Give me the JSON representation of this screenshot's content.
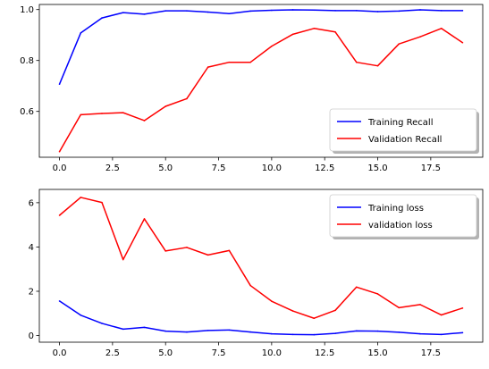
{
  "chart_data": [
    {
      "type": "line",
      "x": [
        0,
        1,
        2,
        3,
        4,
        5,
        6,
        7,
        8,
        9,
        10,
        11,
        12,
        13,
        14,
        15,
        16,
        17,
        18,
        19
      ],
      "xlim": [
        -0.95,
        19.95
      ],
      "ylim": [
        0.42,
        1.02
      ],
      "xticks": [
        0.0,
        2.5,
        5.0,
        7.5,
        10.0,
        12.5,
        15.0,
        17.5
      ],
      "xtick_labels": [
        "0.0",
        "2.5",
        "5.0",
        "7.5",
        "10.0",
        "12.5",
        "15.0",
        "17.5"
      ],
      "yticks": [
        0.6,
        0.8,
        1.0
      ],
      "ytick_labels": [
        "0.6",
        "0.8",
        "1.0"
      ],
      "grid": false,
      "legend_position": "lower-right",
      "series": [
        {
          "name": "Training Recall",
          "color": "#0000ff",
          "values": [
            0.707,
            0.908,
            0.967,
            0.988,
            0.982,
            0.995,
            0.995,
            0.99,
            0.984,
            0.994,
            0.997,
            0.999,
            0.998,
            0.996,
            0.996,
            0.992,
            0.994,
            0.999,
            0.996,
            0.996
          ]
        },
        {
          "name": "Validation Recall",
          "color": "#ff0000",
          "values": [
            0.442,
            0.587,
            0.592,
            0.595,
            0.564,
            0.62,
            0.65,
            0.774,
            0.793,
            0.793,
            0.856,
            0.903,
            0.926,
            0.912,
            0.793,
            0.779,
            0.865,
            0.893,
            0.926,
            0.87
          ]
        }
      ]
    },
    {
      "type": "line",
      "x": [
        0,
        1,
        2,
        3,
        4,
        5,
        6,
        7,
        8,
        9,
        10,
        11,
        12,
        13,
        14,
        15,
        16,
        17,
        18,
        19
      ],
      "xlim": [
        -0.95,
        19.95
      ],
      "ylim": [
        -0.3,
        6.6
      ],
      "xticks": [
        0.0,
        2.5,
        5.0,
        7.5,
        10.0,
        12.5,
        15.0,
        17.5
      ],
      "xtick_labels": [
        "0.0",
        "2.5",
        "5.0",
        "7.5",
        "10.0",
        "12.5",
        "15.0",
        "17.5"
      ],
      "yticks": [
        0,
        2,
        4,
        6
      ],
      "ytick_labels": [
        "0",
        "2",
        "4",
        "6"
      ],
      "grid": false,
      "legend_position": "upper-right",
      "series": [
        {
          "name": "Training loss",
          "color": "#0000ff",
          "values": [
            1.56,
            0.92,
            0.55,
            0.29,
            0.37,
            0.2,
            0.16,
            0.23,
            0.25,
            0.16,
            0.08,
            0.05,
            0.04,
            0.1,
            0.21,
            0.2,
            0.15,
            0.08,
            0.05,
            0.13
          ]
        },
        {
          "name": "validation loss",
          "color": "#ff0000",
          "values": [
            5.43,
            6.24,
            6.01,
            3.43,
            5.27,
            3.82,
            3.98,
            3.64,
            3.84,
            2.26,
            1.55,
            1.11,
            0.78,
            1.14,
            2.19,
            1.88,
            1.26,
            1.4,
            0.93,
            1.24
          ]
        }
      ]
    }
  ]
}
